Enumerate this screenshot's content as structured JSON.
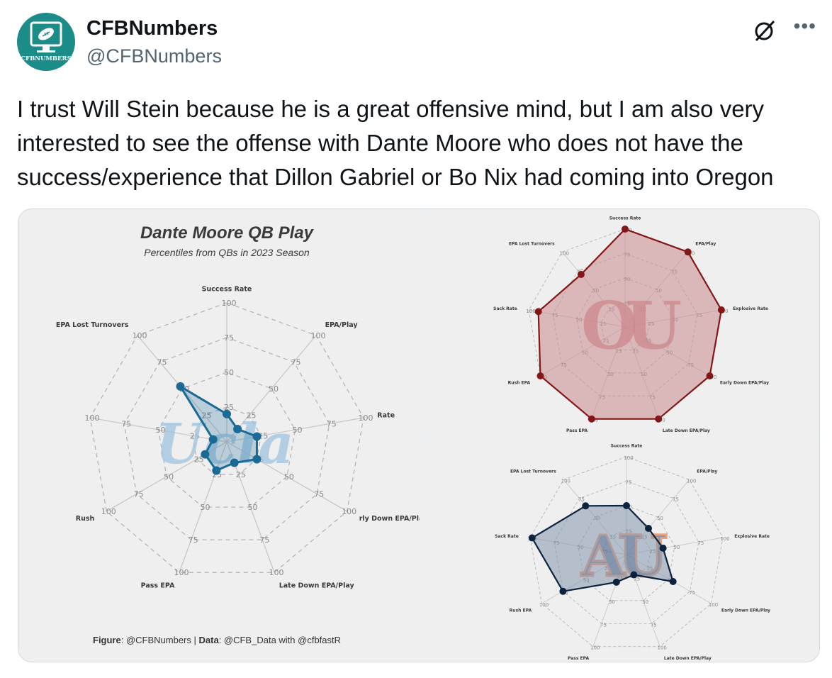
{
  "tweet": {
    "display_name": "CFBNumbers",
    "handle": "@CFBNumbers",
    "avatar_text": "CFBNUMBERS",
    "text": "I trust Will Stein because he is a great offensive mind, but I am also very interested to see the offense with Dante Moore who does not have the success/experience that Dillon Gabriel or Bo Nix had coming into Oregon"
  },
  "icons": {
    "grok": "grok-icon",
    "more": "more-options-icon"
  },
  "figure": {
    "title": "Dante Moore QB Play",
    "subtitle": "Percentiles from QBs in 2023 Season",
    "credit_figure_label": "Figure",
    "credit_figure_value": ": @CFBNumbers | ",
    "credit_data_label": "Data",
    "credit_data_value": ": @CFB_Data with @cfbfastR"
  },
  "chart_data": [
    {
      "type": "radar",
      "name": "dante-moore",
      "title": "Dante Moore QB Play",
      "subtitle": "Percentiles from QBs in 2023 Season",
      "axes": [
        "Success Rate",
        "EPA Lost Turnovers",
        "Sack Rate",
        "Rush EPA",
        "Pass EPA",
        "Late Down EPA/Play",
        "Early Down EPA/Play",
        "Explosive Rate",
        "EPA/Play"
      ],
      "axis_labels_visible": [
        "Success Rate",
        "EPA Lost Turnovers",
        "Rush",
        "Pass EPA",
        "Late Down EPA/Play",
        "rly Down EPA/Play",
        "Rate",
        "EPA/Play"
      ],
      "rings": [
        25,
        50,
        75,
        100
      ],
      "range": [
        0,
        100
      ],
      "values": [
        20,
        52,
        10,
        18,
        22,
        16,
        25,
        22,
        12
      ],
      "color": "#1b6a96",
      "logo": "ucla-logo",
      "logo_color": "#9fc3df"
    },
    {
      "type": "radar",
      "name": "oklahoma",
      "axes": [
        "Success Rate",
        "EPA Lost Turnovers",
        "Sack Rate",
        "Rush EPA",
        "Pass EPA",
        "Late Down EPA/Play",
        "Early Down EPA/Play",
        "Explosive Rate",
        "EPA/Play"
      ],
      "rings": [
        25,
        50,
        75,
        100
      ],
      "range": [
        0,
        100
      ],
      "values": [
        100,
        70,
        90,
        100,
        100,
        100,
        100,
        100,
        100
      ],
      "color": "#841617",
      "fill": "#c98a8c",
      "logo": "oklahoma-logo",
      "logo_text": "OU",
      "logo_color": "#d07f87"
    },
    {
      "type": "radar",
      "name": "auburn",
      "axes": [
        "Success Rate",
        "EPA Lost Turnovers",
        "Sack Rate",
        "Rush EPA",
        "Pass EPA",
        "Late Down EPA/Play",
        "Early Down EPA/Play",
        "Explosive Rate",
        "EPA/Play"
      ],
      "rings": [
        25,
        50,
        75,
        100
      ],
      "range": [
        0,
        100
      ],
      "values": [
        50,
        65,
        98,
        75,
        30,
        22,
        55,
        38,
        35
      ],
      "color": "#0c2340",
      "fill": "#8597ae",
      "logo": "auburn-logo",
      "logo_text": "AU",
      "logo_color": "#e8a07c"
    }
  ]
}
